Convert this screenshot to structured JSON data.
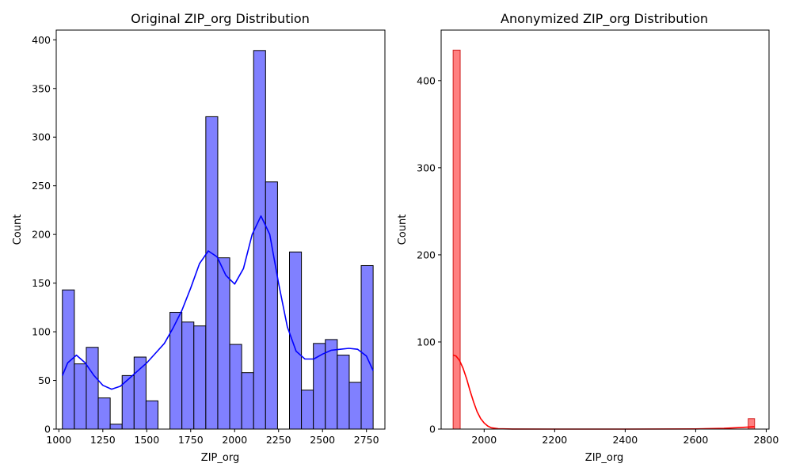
{
  "chart_data": [
    {
      "type": "bar",
      "title": "Original ZIP_org Distribution",
      "xlabel": "ZIP_org",
      "ylabel": "Count",
      "xlim": [
        985,
        2855
      ],
      "ylim": [
        0,
        410
      ],
      "xticks": [
        1000,
        1250,
        1500,
        1750,
        2000,
        2250,
        2500,
        2750
      ],
      "yticks": [
        0,
        50,
        100,
        150,
        200,
        250,
        300,
        350,
        400
      ],
      "bar_color": "#8080ff",
      "edge_color": "#000000",
      "kde_color": "#0000ff",
      "bins": [
        {
          "x0": 1020,
          "x1": 1088,
          "count": 143
        },
        {
          "x0": 1088,
          "x1": 1156,
          "count": 67
        },
        {
          "x0": 1156,
          "x1": 1224,
          "count": 84
        },
        {
          "x0": 1224,
          "x1": 1292,
          "count": 32
        },
        {
          "x0": 1292,
          "x1": 1360,
          "count": 5
        },
        {
          "x0": 1360,
          "x1": 1428,
          "count": 55
        },
        {
          "x0": 1428,
          "x1": 1496,
          "count": 74
        },
        {
          "x0": 1496,
          "x1": 1564,
          "count": 29
        },
        {
          "x0": 1564,
          "x1": 1632,
          "count": 0
        },
        {
          "x0": 1632,
          "x1": 1700,
          "count": 120
        },
        {
          "x0": 1700,
          "x1": 1768,
          "count": 110
        },
        {
          "x0": 1768,
          "x1": 1836,
          "count": 106
        },
        {
          "x0": 1836,
          "x1": 1904,
          "count": 321
        },
        {
          "x0": 1904,
          "x1": 1972,
          "count": 176
        },
        {
          "x0": 1972,
          "x1": 2040,
          "count": 87
        },
        {
          "x0": 2040,
          "x1": 2108,
          "count": 58
        },
        {
          "x0": 2108,
          "x1": 2176,
          "count": 389
        },
        {
          "x0": 2176,
          "x1": 2244,
          "count": 254
        },
        {
          "x0": 2244,
          "x1": 2312,
          "count": 0
        },
        {
          "x0": 2312,
          "x1": 2380,
          "count": 182
        },
        {
          "x0": 2380,
          "x1": 2448,
          "count": 40
        },
        {
          "x0": 2448,
          "x1": 2516,
          "count": 88
        },
        {
          "x0": 2516,
          "x1": 2584,
          "count": 92
        },
        {
          "x0": 2584,
          "x1": 2652,
          "count": 76
        },
        {
          "x0": 2652,
          "x1": 2720,
          "count": 48
        },
        {
          "x0": 2720,
          "x1": 2788,
          "count": 168
        }
      ],
      "kde": [
        [
          1020,
          55
        ],
        [
          1050,
          68
        ],
        [
          1100,
          76
        ],
        [
          1150,
          68
        ],
        [
          1200,
          55
        ],
        [
          1250,
          45
        ],
        [
          1300,
          41
        ],
        [
          1350,
          44
        ],
        [
          1400,
          52
        ],
        [
          1450,
          60
        ],
        [
          1500,
          68
        ],
        [
          1550,
          78
        ],
        [
          1600,
          88
        ],
        [
          1650,
          104
        ],
        [
          1700,
          122
        ],
        [
          1750,
          145
        ],
        [
          1800,
          170
        ],
        [
          1850,
          183
        ],
        [
          1900,
          177
        ],
        [
          1950,
          158
        ],
        [
          2000,
          149
        ],
        [
          2050,
          165
        ],
        [
          2100,
          200
        ],
        [
          2150,
          219
        ],
        [
          2200,
          200
        ],
        [
          2250,
          150
        ],
        [
          2300,
          105
        ],
        [
          2350,
          80
        ],
        [
          2400,
          72
        ],
        [
          2450,
          72
        ],
        [
          2500,
          77
        ],
        [
          2550,
          81
        ],
        [
          2600,
          82
        ],
        [
          2650,
          83
        ],
        [
          2700,
          82
        ],
        [
          2750,
          75
        ],
        [
          2788,
          60
        ]
      ]
    },
    {
      "type": "bar",
      "title": "Anonymized ZIP_org Distribution",
      "xlabel": "ZIP_org",
      "ylabel": "Count",
      "xlim": [
        1878,
        2808
      ],
      "ylim": [
        0,
        458
      ],
      "xticks": [
        2000,
        2200,
        2400,
        2600,
        2800
      ],
      "yticks": [
        0,
        100,
        200,
        300,
        400
      ],
      "bar_color": "#ff8080",
      "edge_color": "#d02020",
      "kde_color": "#ff0000",
      "bins": [
        {
          "x0": 1912,
          "x1": 1932,
          "count": 435
        },
        {
          "x0": 2749,
          "x1": 2767,
          "count": 12
        }
      ],
      "kde": [
        [
          1912,
          85
        ],
        [
          1920,
          84
        ],
        [
          1930,
          79
        ],
        [
          1940,
          70
        ],
        [
          1950,
          58
        ],
        [
          1960,
          44
        ],
        [
          1970,
          31
        ],
        [
          1980,
          20
        ],
        [
          1990,
          12
        ],
        [
          2000,
          7
        ],
        [
          2010,
          3.5
        ],
        [
          2020,
          1.5
        ],
        [
          2040,
          0.4
        ],
        [
          2080,
          0.1
        ],
        [
          2200,
          0
        ],
        [
          2400,
          0
        ],
        [
          2600,
          0.2
        ],
        [
          2680,
          0.8
        ],
        [
          2720,
          1.6
        ],
        [
          2750,
          2.4
        ],
        [
          2767,
          2.8
        ]
      ]
    }
  ]
}
